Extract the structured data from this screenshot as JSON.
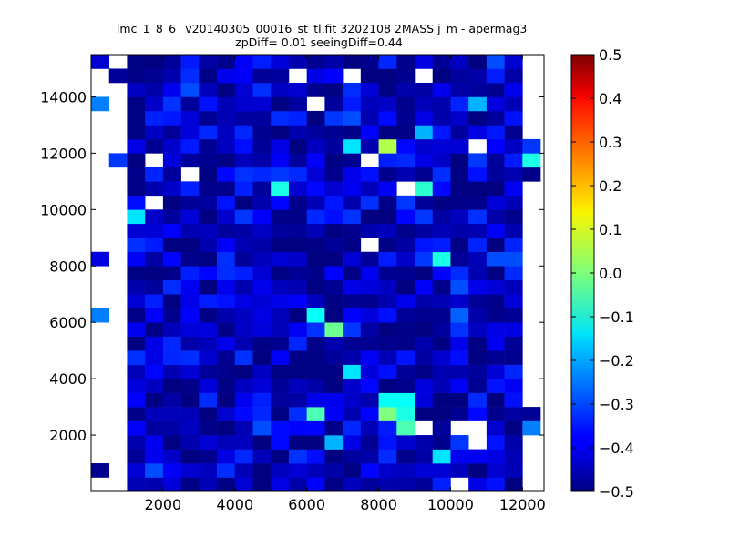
{
  "chart_data": {
    "type": "heatmap",
    "title_lines": [
      "_lmc_1_8_6_ v20140305_00016_st_tl.fit 3202108 2MASS j_m - apermag3",
      "zpDiff= 0.01 seeingDiff=0.44"
    ],
    "xlabel": "",
    "ylabel": "",
    "xlim": [
      0,
      12600
    ],
    "ylim": [
      0,
      15500
    ],
    "xticks": [
      2000,
      4000,
      6000,
      8000,
      10000,
      12000
    ],
    "yticks": [
      2000,
      4000,
      6000,
      8000,
      10000,
      12000,
      14000
    ],
    "grid": false,
    "colormap": "jet",
    "color_range": [
      -0.5,
      0.5
    ],
    "colorbar_ticks": [
      0.5,
      0.4,
      0.3,
      0.2,
      0.1,
      0.0,
      -0.1,
      -0.2,
      -0.3,
      -0.4,
      -0.5
    ],
    "colorbar_tick_labels": [
      "0.5",
      "0.4",
      "0.3",
      "0.2",
      "0.1",
      "0.0",
      "−0.1",
      "−0.2",
      "−0.3",
      "−0.4",
      "−0.5"
    ],
    "bin_size_x": 500,
    "bin_size_y": 500,
    "grid_cols": 25,
    "grid_rows": 31,
    "seed": 77,
    "value_range_estimate": [
      -0.5,
      -0.32
    ],
    "hot_cells": [
      {
        "x": 8250,
        "y": 12250,
        "value": 0.05
      },
      {
        "x": 6750,
        "y": 5750,
        "value": -0.02
      },
      {
        "x": 8250,
        "y": 2750,
        "value": 0.0
      },
      {
        "x": 8750,
        "y": 2250,
        "value": -0.05
      },
      {
        "x": 6250,
        "y": 2750,
        "value": -0.05
      },
      {
        "x": 8750,
        "y": 2750,
        "value": -0.1
      },
      {
        "x": 9250,
        "y": 10750,
        "value": -0.08
      },
      {
        "x": 5250,
        "y": 10750,
        "value": -0.1
      },
      {
        "x": 9750,
        "y": 8250,
        "value": -0.1
      },
      {
        "x": 7250,
        "y": 12250,
        "value": -0.15
      },
      {
        "x": 9250,
        "y": 12750,
        "value": -0.2
      },
      {
        "x": 7250,
        "y": 4250,
        "value": -0.15
      },
      {
        "x": 8250,
        "y": 3250,
        "value": -0.12
      },
      {
        "x": 8750,
        "y": 3250,
        "value": -0.12
      },
      {
        "x": 6250,
        "y": 6250,
        "value": -0.12
      },
      {
        "x": 1250,
        "y": 9750,
        "value": -0.15
      },
      {
        "x": 12250,
        "y": 11750,
        "value": -0.1
      },
      {
        "x": 6750,
        "y": 1750,
        "value": -0.2
      },
      {
        "x": 9750,
        "y": 1250,
        "value": -0.15
      },
      {
        "x": 10750,
        "y": 13750,
        "value": -0.2
      },
      {
        "x": 250,
        "y": 13750,
        "value": -0.25
      },
      {
        "x": 250,
        "y": 6250,
        "value": -0.25
      },
      {
        "x": 12250,
        "y": 2250,
        "value": -0.25
      },
      {
        "x": 11750,
        "y": 8250,
        "value": -0.3
      },
      {
        "x": 11250,
        "y": 8250,
        "value": -0.3
      },
      {
        "x": 10250,
        "y": 7250,
        "value": -0.3
      },
      {
        "x": 10250,
        "y": 6250,
        "value": -0.28
      },
      {
        "x": 7250,
        "y": 13250,
        "value": -0.3
      },
      {
        "x": 11250,
        "y": 15250,
        "value": -0.3
      },
      {
        "x": 1750,
        "y": 750,
        "value": -0.3
      },
      {
        "x": 4750,
        "y": 2250,
        "value": -0.3
      },
      {
        "x": 2750,
        "y": 14250,
        "value": -0.3
      }
    ],
    "empty_cells": [
      {
        "x": 5750,
        "y": 14750
      },
      {
        "x": 7250,
        "y": 14750
      },
      {
        "x": 9250,
        "y": 14750
      },
      {
        "x": 6250,
        "y": 13750
      },
      {
        "x": 10750,
        "y": 12250
      },
      {
        "x": 1750,
        "y": 11750
      },
      {
        "x": 7750,
        "y": 11750
      },
      {
        "x": 2750,
        "y": 11250
      },
      {
        "x": 8750,
        "y": 10750
      },
      {
        "x": 1750,
        "y": 10250
      },
      {
        "x": 7750,
        "y": 8750
      },
      {
        "x": 9250,
        "y": 2250
      },
      {
        "x": 10250,
        "y": 2250
      },
      {
        "x": 10750,
        "y": 2250
      },
      {
        "x": 10750,
        "y": 1750
      },
      {
        "x": 10250,
        "y": 250
      }
    ]
  }
}
